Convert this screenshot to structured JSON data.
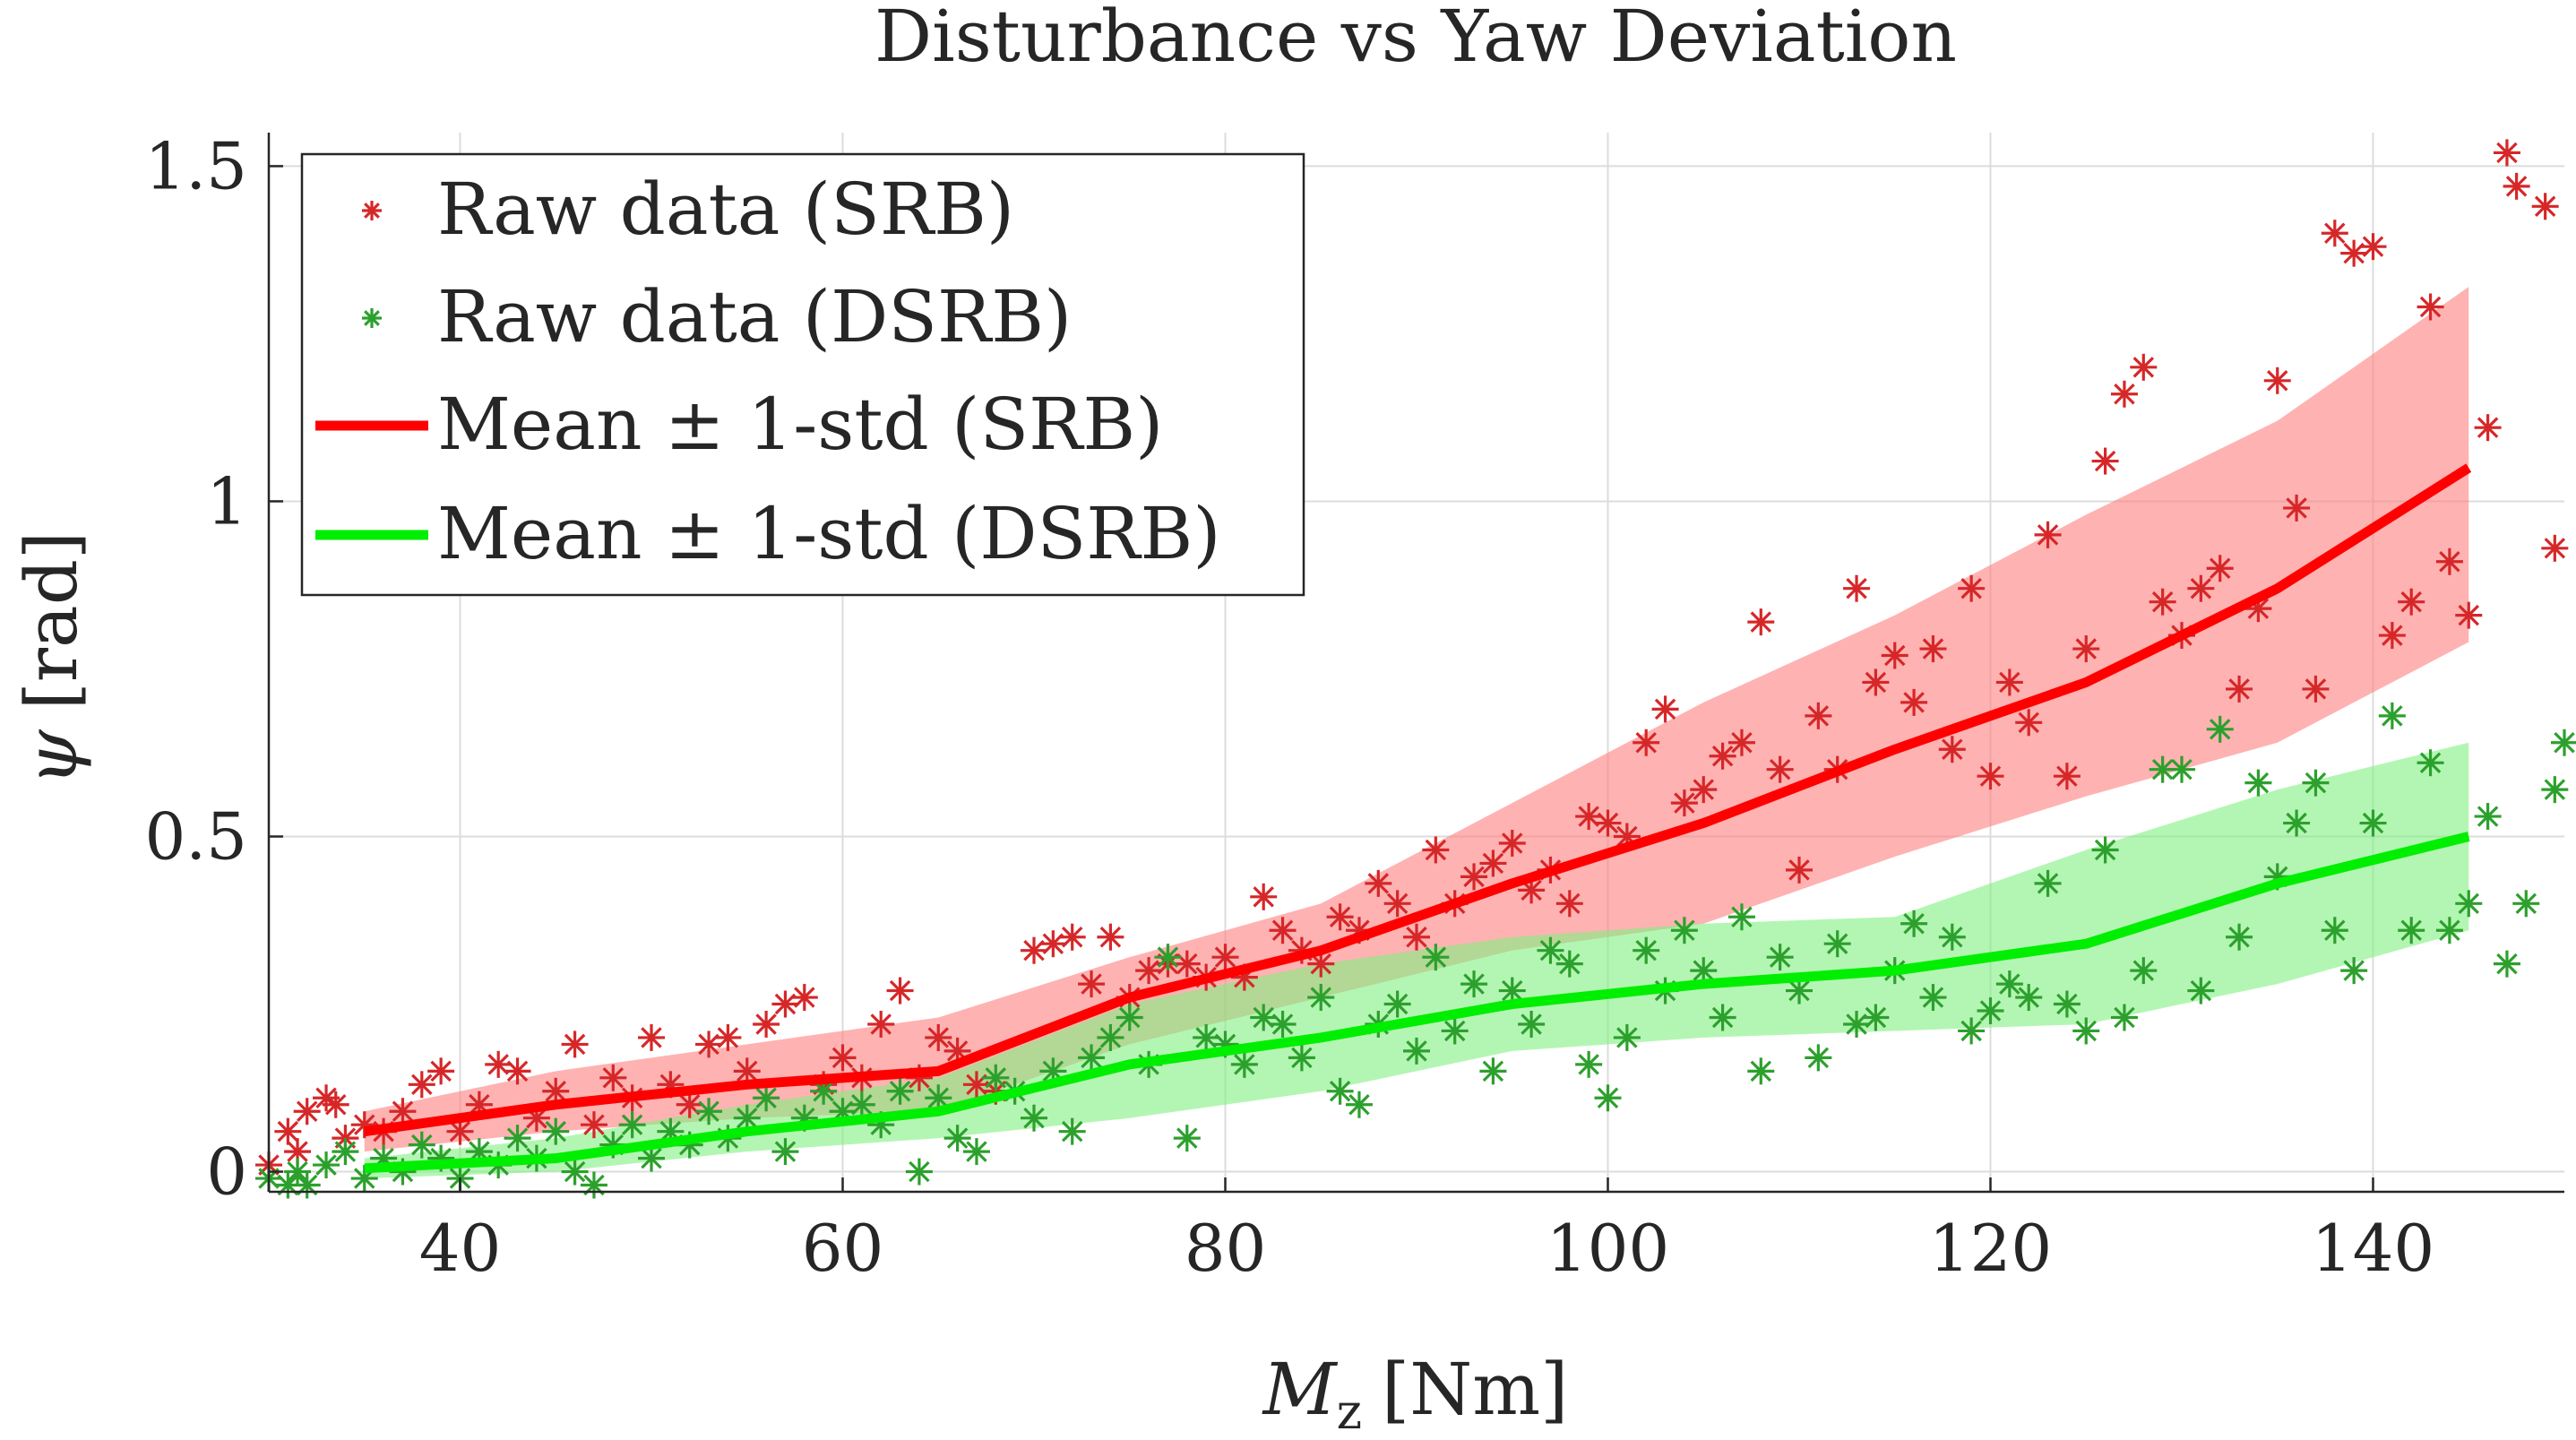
{
  "chart_data": {
    "type": "scatter",
    "title": "Disturbance vs Yaw Deviation",
    "xlabel": {
      "main": "M",
      "sub": "z",
      "unit": "[Nm]"
    },
    "ylabel": {
      "symbol": "ψ",
      "unit": "[rad]"
    },
    "xlim": [
      30,
      150
    ],
    "ylim": [
      -0.03,
      1.55
    ],
    "xticks": [
      40,
      60,
      80,
      100,
      120,
      140
    ],
    "yticks": [
      0,
      0.5,
      1,
      1.5
    ],
    "xtick_labels": [
      "40",
      "60",
      "80",
      "100",
      "120",
      "140"
    ],
    "ytick_labels": [
      "0",
      "0.5",
      "1",
      "1.5"
    ],
    "grid": true,
    "legend_position": "top-left",
    "colors": {
      "srb_points": "#d62728",
      "dsrb_points": "#2ca02c",
      "srb_mean": "#ff0000",
      "dsrb_mean": "#00ee00",
      "srb_band": "#ff7f7f",
      "dsrb_band": "#80f080"
    },
    "series": [
      {
        "name": "Raw data (SRB)",
        "kind": "scatter",
        "color_key": "srb_points",
        "points": [
          [
            30,
            0.01
          ],
          [
            31,
            0.06
          ],
          [
            31.5,
            0.03
          ],
          [
            32,
            0.09
          ],
          [
            33,
            0.11
          ],
          [
            33.5,
            0.1
          ],
          [
            34,
            0.05
          ],
          [
            35,
            0.07
          ],
          [
            36,
            0.06
          ],
          [
            37,
            0.09
          ],
          [
            38,
            0.13
          ],
          [
            39,
            0.15
          ],
          [
            40,
            0.06
          ],
          [
            41,
            0.1
          ],
          [
            42,
            0.16
          ],
          [
            43,
            0.15
          ],
          [
            44,
            0.08
          ],
          [
            45,
            0.12
          ],
          [
            46,
            0.19
          ],
          [
            47,
            0.07
          ],
          [
            48,
            0.14
          ],
          [
            49,
            0.11
          ],
          [
            50,
            0.2
          ],
          [
            51,
            0.13
          ],
          [
            52,
            0.1
          ],
          [
            53,
            0.19
          ],
          [
            54,
            0.2
          ],
          [
            55,
            0.15
          ],
          [
            56,
            0.22
          ],
          [
            57,
            0.25
          ],
          [
            58,
            0.26
          ],
          [
            59,
            0.13
          ],
          [
            60,
            0.17
          ],
          [
            61,
            0.14
          ],
          [
            62,
            0.22
          ],
          [
            63,
            0.27
          ],
          [
            64,
            0.14
          ],
          [
            65,
            0.2
          ],
          [
            66,
            0.18
          ],
          [
            67,
            0.13
          ],
          [
            68,
            0.12
          ],
          [
            70,
            0.33
          ],
          [
            71,
            0.34
          ],
          [
            72,
            0.35
          ],
          [
            73,
            0.28
          ],
          [
            74,
            0.35
          ],
          [
            75,
            0.26
          ],
          [
            76,
            0.3
          ],
          [
            77,
            0.31
          ],
          [
            78,
            0.31
          ],
          [
            79,
            0.29
          ],
          [
            80,
            0.32
          ],
          [
            81,
            0.29
          ],
          [
            82,
            0.41
          ],
          [
            83,
            0.36
          ],
          [
            84,
            0.33
          ],
          [
            85,
            0.31
          ],
          [
            86,
            0.38
          ],
          [
            87,
            0.36
          ],
          [
            88,
            0.43
          ],
          [
            89,
            0.4
          ],
          [
            90,
            0.35
          ],
          [
            91,
            0.48
          ],
          [
            92,
            0.4
          ],
          [
            93,
            0.44
          ],
          [
            94,
            0.46
          ],
          [
            95,
            0.49
          ],
          [
            96,
            0.42
          ],
          [
            97,
            0.45
          ],
          [
            98,
            0.4
          ],
          [
            99,
            0.53
          ],
          [
            100,
            0.52
          ],
          [
            101,
            0.5
          ],
          [
            102,
            0.64
          ],
          [
            103,
            0.69
          ],
          [
            104,
            0.55
          ],
          [
            105,
            0.57
          ],
          [
            106,
            0.62
          ],
          [
            107,
            0.64
          ],
          [
            108,
            0.82
          ],
          [
            109,
            0.6
          ],
          [
            110,
            0.45
          ],
          [
            111,
            0.68
          ],
          [
            112,
            0.6
          ],
          [
            113,
            0.87
          ],
          [
            114,
            0.73
          ],
          [
            115,
            0.77
          ],
          [
            116,
            0.7
          ],
          [
            117,
            0.78
          ],
          [
            118,
            0.63
          ],
          [
            119,
            0.87
          ],
          [
            120,
            0.59
          ],
          [
            121,
            0.73
          ],
          [
            122,
            0.67
          ],
          [
            123,
            0.95
          ],
          [
            124,
            0.59
          ],
          [
            125,
            0.78
          ],
          [
            126,
            1.06
          ],
          [
            127,
            1.16
          ],
          [
            128,
            1.2
          ],
          [
            129,
            0.85
          ],
          [
            130,
            0.8
          ],
          [
            131,
            0.87
          ],
          [
            132,
            0.9
          ],
          [
            133,
            0.72
          ],
          [
            134,
            0.84
          ],
          [
            135,
            1.18
          ],
          [
            136,
            0.99
          ],
          [
            137,
            0.72
          ],
          [
            138,
            1.4
          ],
          [
            139,
            1.37
          ],
          [
            140,
            1.38
          ],
          [
            141,
            0.8
          ],
          [
            142,
            0.85
          ],
          [
            143,
            1.29
          ],
          [
            144,
            0.91
          ],
          [
            145,
            0.83
          ],
          [
            146,
            1.11
          ],
          [
            147,
            1.52
          ],
          [
            147.5,
            1.47
          ],
          [
            149,
            1.44
          ],
          [
            149.5,
            0.93
          ]
        ]
      },
      {
        "name": "Raw data (DSRB)",
        "kind": "scatter",
        "color_key": "dsrb_points",
        "points": [
          [
            30,
            -0.01
          ],
          [
            31,
            -0.02
          ],
          [
            31.5,
            0.0
          ],
          [
            32,
            -0.02
          ],
          [
            33,
            0.01
          ],
          [
            34,
            0.03
          ],
          [
            35,
            -0.01
          ],
          [
            36,
            0.02
          ],
          [
            37,
            0.0
          ],
          [
            38,
            0.04
          ],
          [
            39,
            0.02
          ],
          [
            40,
            -0.01
          ],
          [
            41,
            0.03
          ],
          [
            42,
            0.01
          ],
          [
            43,
            0.05
          ],
          [
            44,
            0.02
          ],
          [
            45,
            0.06
          ],
          [
            46,
            0.0
          ],
          [
            47,
            -0.02
          ],
          [
            48,
            0.04
          ],
          [
            49,
            0.07
          ],
          [
            50,
            0.02
          ],
          [
            51,
            0.06
          ],
          [
            52,
            0.04
          ],
          [
            53,
            0.09
          ],
          [
            54,
            0.05
          ],
          [
            55,
            0.08
          ],
          [
            56,
            0.11
          ],
          [
            57,
            0.03
          ],
          [
            58,
            0.08
          ],
          [
            59,
            0.12
          ],
          [
            60,
            0.09
          ],
          [
            61,
            0.1
          ],
          [
            62,
            0.07
          ],
          [
            63,
            0.12
          ],
          [
            64,
            0.0
          ],
          [
            65,
            0.11
          ],
          [
            66,
            0.05
          ],
          [
            67,
            0.03
          ],
          [
            68,
            0.14
          ],
          [
            69,
            0.12
          ],
          [
            70,
            0.08
          ],
          [
            71,
            0.15
          ],
          [
            72,
            0.06
          ],
          [
            73,
            0.17
          ],
          [
            74,
            0.2
          ],
          [
            75,
            0.23
          ],
          [
            76,
            0.16
          ],
          [
            77,
            0.32
          ],
          [
            78,
            0.05
          ],
          [
            79,
            0.2
          ],
          [
            80,
            0.19
          ],
          [
            81,
            0.16
          ],
          [
            82,
            0.23
          ],
          [
            83,
            0.22
          ],
          [
            84,
            0.17
          ],
          [
            85,
            0.26
          ],
          [
            86,
            0.12
          ],
          [
            87,
            0.1
          ],
          [
            88,
            0.22
          ],
          [
            89,
            0.25
          ],
          [
            90,
            0.18
          ],
          [
            91,
            0.32
          ],
          [
            92,
            0.21
          ],
          [
            93,
            0.28
          ],
          [
            94,
            0.15
          ],
          [
            95,
            0.27
          ],
          [
            96,
            0.22
          ],
          [
            97,
            0.33
          ],
          [
            98,
            0.31
          ],
          [
            99,
            0.16
          ],
          [
            100,
            0.11
          ],
          [
            101,
            0.2
          ],
          [
            102,
            0.33
          ],
          [
            103,
            0.27
          ],
          [
            104,
            0.36
          ],
          [
            105,
            0.3
          ],
          [
            106,
            0.23
          ],
          [
            107,
            0.38
          ],
          [
            108,
            0.15
          ],
          [
            109,
            0.32
          ],
          [
            110,
            0.27
          ],
          [
            111,
            0.17
          ],
          [
            112,
            0.34
          ],
          [
            113,
            0.22
          ],
          [
            114,
            0.23
          ],
          [
            115,
            0.3
          ],
          [
            116,
            0.37
          ],
          [
            117,
            0.26
          ],
          [
            118,
            0.35
          ],
          [
            119,
            0.21
          ],
          [
            120,
            0.24
          ],
          [
            121,
            0.28
          ],
          [
            122,
            0.26
          ],
          [
            123,
            0.43
          ],
          [
            124,
            0.25
          ],
          [
            125,
            0.21
          ],
          [
            126,
            0.48
          ],
          [
            127,
            0.23
          ],
          [
            128,
            0.3
          ],
          [
            129,
            0.6
          ],
          [
            130,
            0.6
          ],
          [
            131,
            0.27
          ],
          [
            132,
            0.66
          ],
          [
            133,
            0.35
          ],
          [
            134,
            0.58
          ],
          [
            135,
            0.44
          ],
          [
            136,
            0.52
          ],
          [
            137,
            0.58
          ],
          [
            138,
            0.36
          ],
          [
            139,
            0.3
          ],
          [
            140,
            0.52
          ],
          [
            141,
            0.68
          ],
          [
            142,
            0.36
          ],
          [
            143,
            0.61
          ],
          [
            144,
            0.36
          ],
          [
            145,
            0.4
          ],
          [
            146,
            0.53
          ],
          [
            147,
            0.31
          ],
          [
            148,
            0.4
          ],
          [
            149.5,
            0.57
          ],
          [
            150,
            0.64
          ]
        ]
      },
      {
        "name": "Mean ± 1-std (SRB)",
        "kind": "line",
        "color_key": "srb_mean",
        "band_color_key": "srb_band",
        "x": [
          35,
          45,
          55,
          65,
          75,
          85,
          95,
          105,
          115,
          125,
          135,
          145
        ],
        "values": [
          0.06,
          0.1,
          0.13,
          0.15,
          0.26,
          0.33,
          0.43,
          0.52,
          0.63,
          0.73,
          0.87,
          1.05
        ],
        "lower": [
          0.03,
          0.06,
          0.08,
          0.09,
          0.19,
          0.26,
          0.33,
          0.37,
          0.47,
          0.56,
          0.64,
          0.79
        ],
        "upper": [
          0.09,
          0.15,
          0.19,
          0.23,
          0.32,
          0.4,
          0.55,
          0.7,
          0.83,
          0.98,
          1.12,
          1.32
        ]
      },
      {
        "name": "Mean ± 1-std (DSRB)",
        "kind": "line",
        "color_key": "dsrb_mean",
        "band_color_key": "dsrb_band",
        "x": [
          35,
          45,
          55,
          65,
          75,
          85,
          95,
          105,
          115,
          125,
          135,
          145
        ],
        "values": [
          0.005,
          0.02,
          0.06,
          0.09,
          0.16,
          0.2,
          0.25,
          0.28,
          0.3,
          0.34,
          0.43,
          0.5
        ],
        "lower": [
          -0.01,
          0.0,
          0.03,
          0.05,
          0.08,
          0.12,
          0.18,
          0.2,
          0.21,
          0.22,
          0.28,
          0.36
        ],
        "upper": [
          0.02,
          0.05,
          0.1,
          0.14,
          0.25,
          0.31,
          0.35,
          0.37,
          0.38,
          0.48,
          0.57,
          0.64
        ]
      }
    ]
  }
}
